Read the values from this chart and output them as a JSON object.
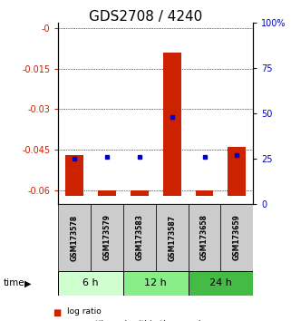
{
  "title": "GDS2708 / 4240",
  "samples": [
    "GSM173578",
    "GSM173579",
    "GSM173583",
    "GSM173587",
    "GSM173658",
    "GSM173659"
  ],
  "log_ratios": [
    -0.047,
    -0.06,
    -0.06,
    -0.009,
    -0.06,
    -0.044
  ],
  "bar_bottoms": [
    -0.062,
    -0.062,
    -0.062,
    -0.062,
    -0.062,
    -0.062
  ],
  "percentile_ranks": [
    25,
    26,
    26,
    48,
    26,
    27
  ],
  "time_groups": [
    {
      "label": "6 h",
      "start": 0,
      "end": 2,
      "color": "#cfffcf"
    },
    {
      "label": "12 h",
      "start": 2,
      "end": 4,
      "color": "#88ee88"
    },
    {
      "label": "24 h",
      "start": 4,
      "end": 6,
      "color": "#44bb44"
    }
  ],
  "ylim_left": [
    -0.065,
    0.002
  ],
  "ylim_right": [
    0,
    100
  ],
  "left_ticks": [
    0,
    -0.015,
    -0.03,
    -0.045,
    -0.06
  ],
  "right_ticks": [
    0,
    25,
    50,
    75,
    100
  ],
  "bar_color": "#cc2200",
  "dot_color": "#0000cc",
  "background_plot": "#ffffff",
  "background_label": "#cccccc",
  "title_fontsize": 11,
  "tick_fontsize": 7,
  "sample_fontsize": 5.5
}
